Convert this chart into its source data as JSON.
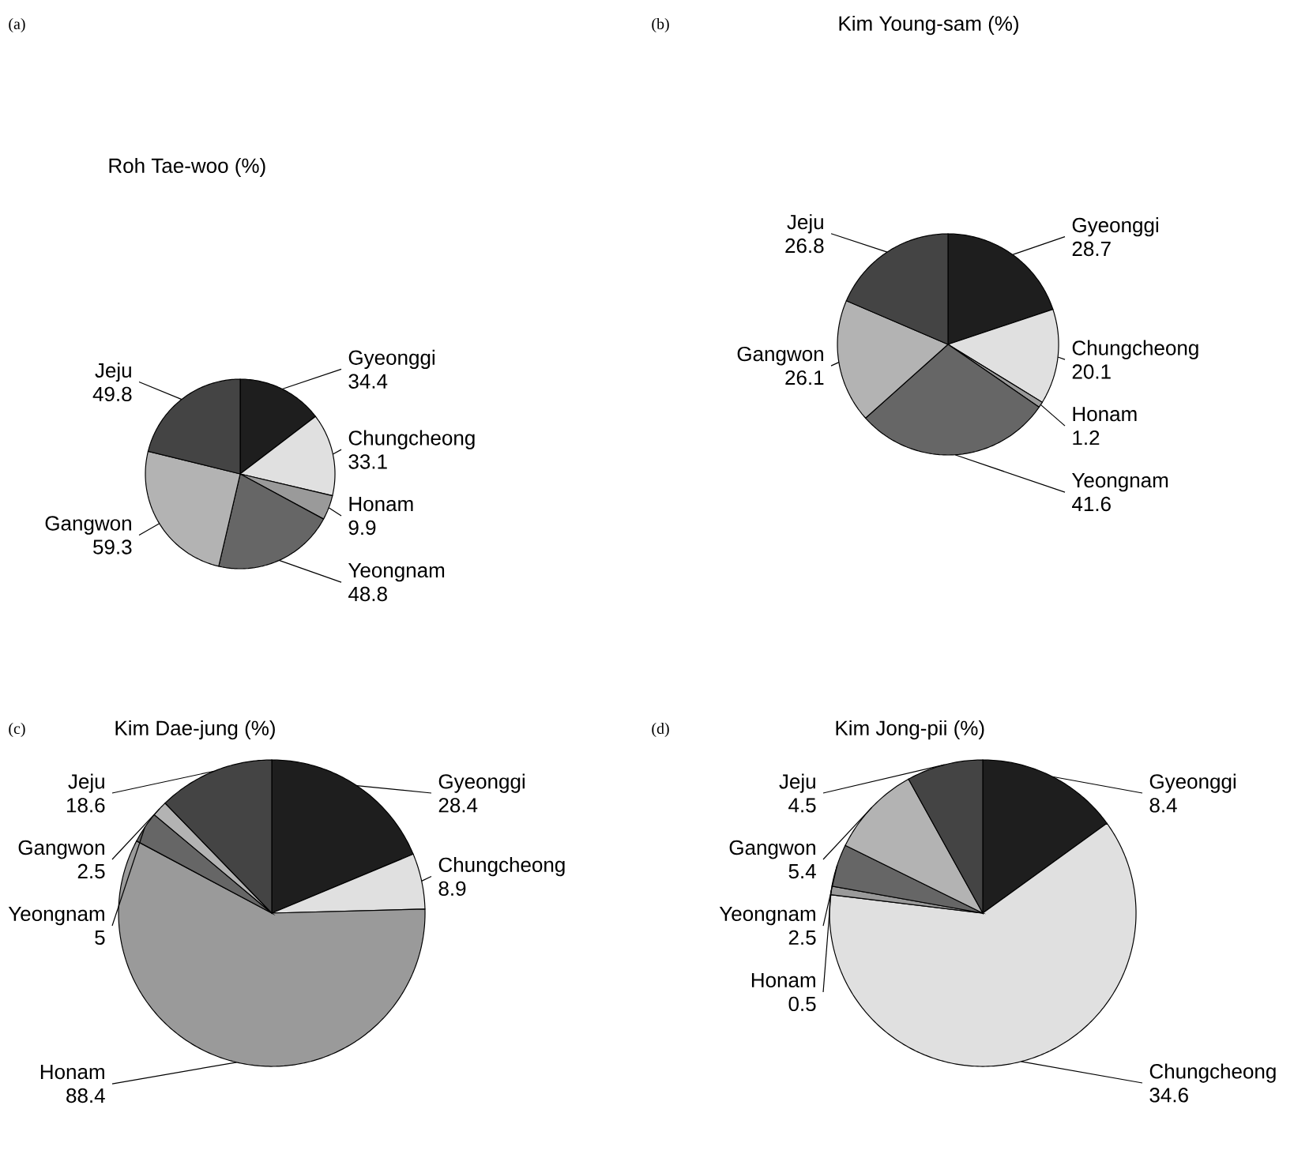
{
  "chart_data": [
    {
      "type": "pie",
      "title": "Roh Tae-woo (%)",
      "annotations": [
        "(a)"
      ],
      "data_labels": true,
      "categories": [
        "Gyeonggi",
        "Chungcheong",
        "Honam",
        "Yeongnam",
        "Gangwon",
        "Jeju"
      ],
      "values": [
        34.4,
        33.1,
        9.9,
        48.8,
        59.3,
        49.8
      ],
      "colors": [
        "#1e1e1e",
        "#e0e0e0",
        "#9a9a9a",
        "#666666",
        "#b3b3b3",
        "#444444"
      ]
    },
    {
      "type": "pie",
      "title": "Kim Young-sam (%)",
      "annotations": [
        "(b)"
      ],
      "data_labels": true,
      "categories": [
        "Gyeonggi",
        "Chungcheong",
        "Honam",
        "Yeongnam",
        "Gangwon",
        "Jeju"
      ],
      "values": [
        28.7,
        20.1,
        1.2,
        41.6,
        26.1,
        26.8
      ],
      "colors": [
        "#1e1e1e",
        "#e0e0e0",
        "#9a9a9a",
        "#666666",
        "#b3b3b3",
        "#444444"
      ]
    },
    {
      "type": "pie",
      "title": "Kim Dae-jung (%)",
      "annotations": [
        "(c)"
      ],
      "data_labels": true,
      "categories": [
        "Gyeonggi",
        "Chungcheong",
        "Honam",
        "Yeongnam",
        "Gangwon",
        "Jeju"
      ],
      "values": [
        28.4,
        8.9,
        88.4,
        5,
        2.5,
        18.6
      ],
      "colors": [
        "#1e1e1e",
        "#e0e0e0",
        "#9a9a9a",
        "#666666",
        "#b3b3b3",
        "#444444"
      ]
    },
    {
      "type": "pie",
      "title": "Kim Jong-pii (%)",
      "annotations": [
        "(d)"
      ],
      "data_labels": true,
      "categories": [
        "Gyeonggi",
        "Chungcheong",
        "Honam",
        "Yeongnam",
        "Gangwon",
        "Jeju"
      ],
      "values": [
        8.4,
        34.6,
        0.5,
        2.5,
        5.4,
        4.5
      ],
      "colors": [
        "#1e1e1e",
        "#e0e0e0",
        "#9a9a9a",
        "#666666",
        "#b3b3b3",
        "#444444"
      ]
    }
  ]
}
